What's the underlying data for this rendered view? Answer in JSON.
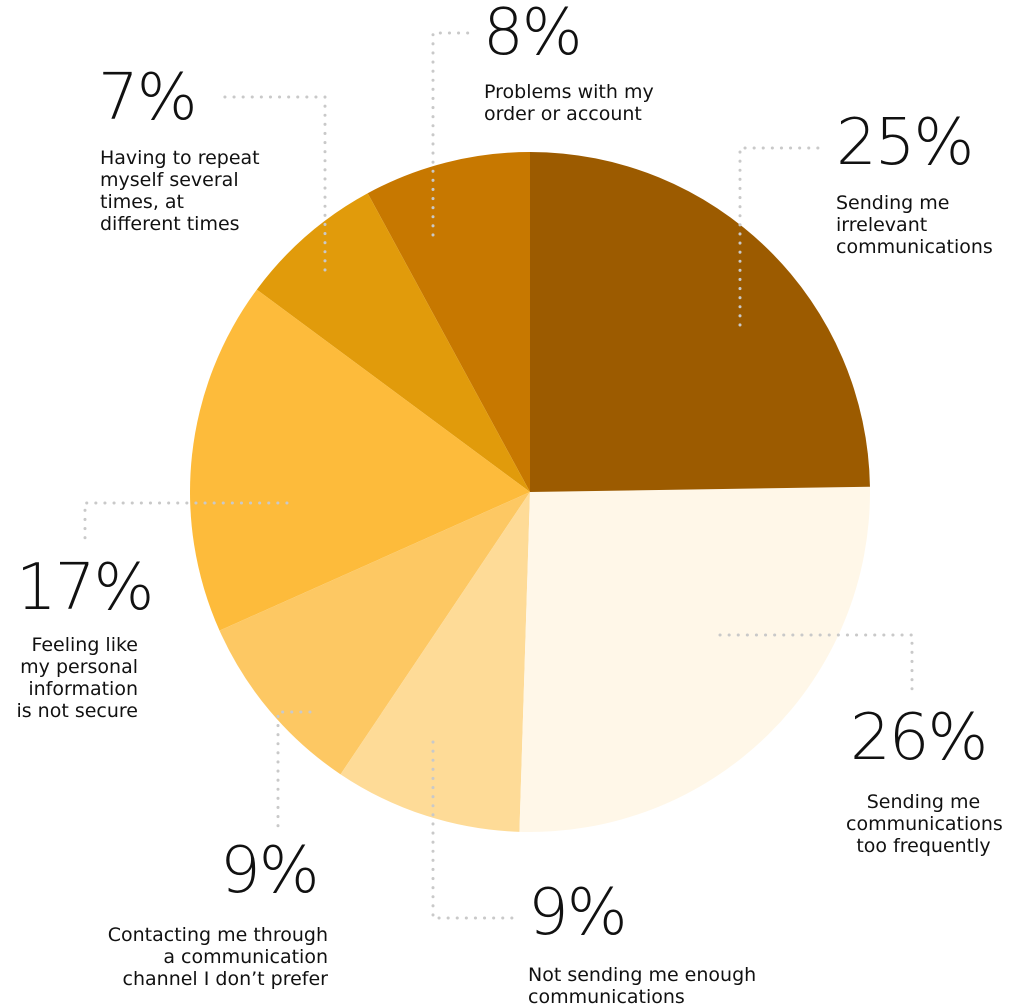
{
  "chart_data": {
    "type": "pie",
    "categories": [
      "Sending me\nirrelevant\ncommunications",
      "Sending me\ncommunications\ntoo frequently",
      "Not sending me enough\ncommunications",
      "Contacting me through\na communication\nchannel I don’t prefer",
      "Feeling like\nmy personal\ninformation\nis not secure",
      "Having to repeat\nmyself several\ntimes, at\ndifferent times",
      "Problems with my\norder or account"
    ],
    "values": [
      25,
      26,
      9,
      9,
      17,
      7,
      8
    ],
    "value_labels": [
      "25%",
      "26%",
      "9%",
      "9%",
      "17%",
      "7%",
      "8%"
    ],
    "colors": [
      "#9c5b00",
      "#fff7e8",
      "#fedb97",
      "#fdc863",
      "#fdbb3b",
      "#e19b0b",
      "#c77800"
    ]
  }
}
